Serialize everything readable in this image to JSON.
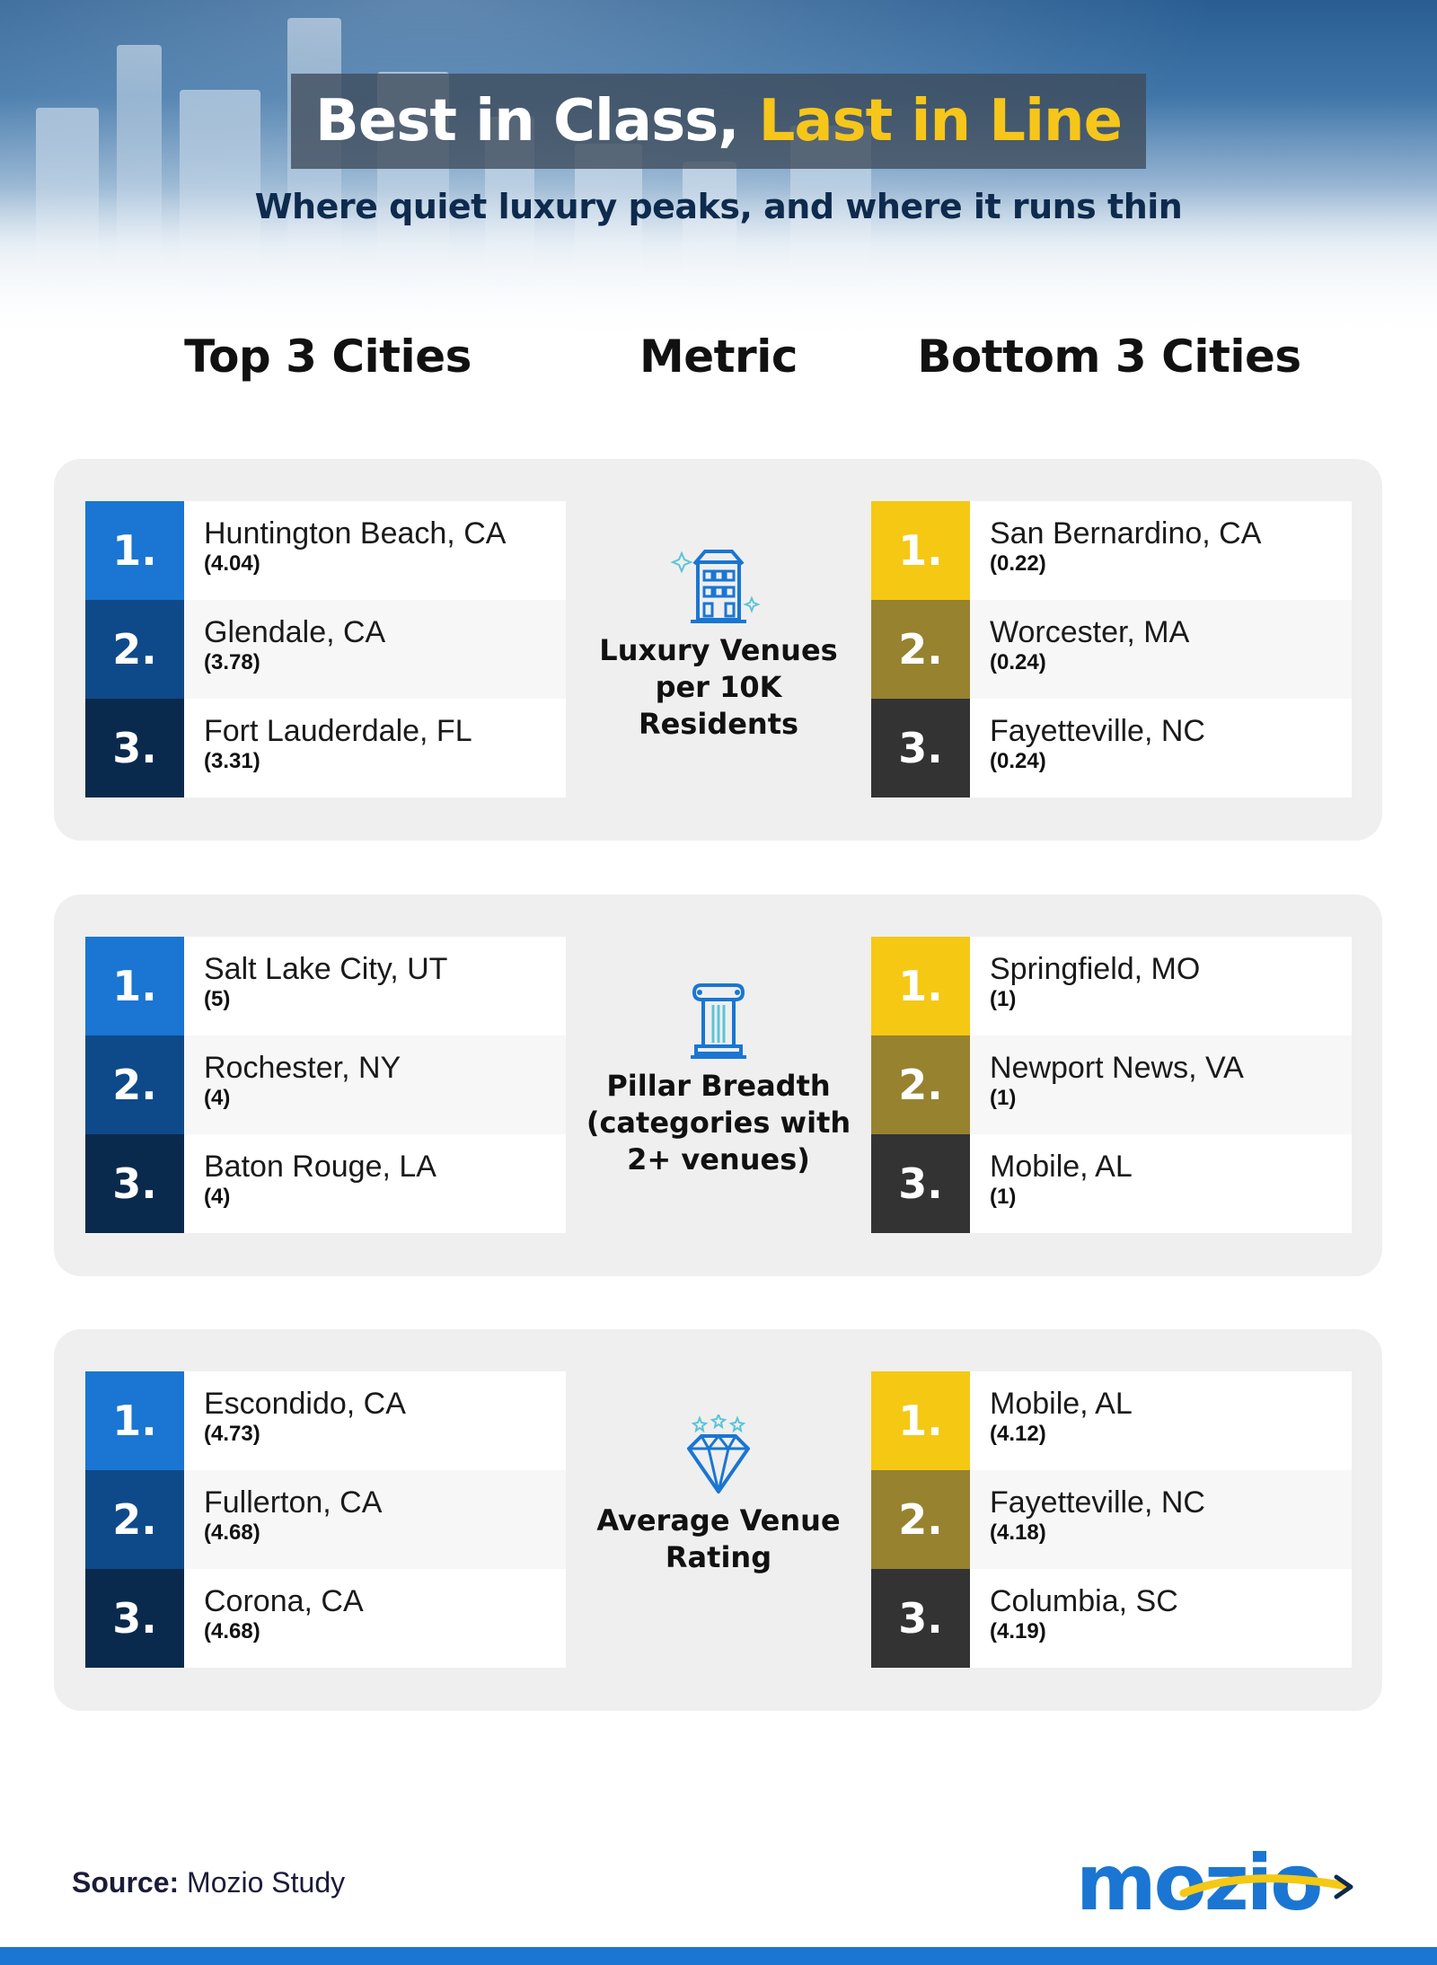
{
  "header": {
    "title_part1": "Best in Class,",
    "title_part2": "Last in Line",
    "subtitle": "Where quiet luxury peaks, and where it runs thin"
  },
  "columns": {
    "top": "Top 3 Cities",
    "metric": "Metric",
    "bottom": "Bottom 3 Cities"
  },
  "metrics": [
    {
      "label": "Luxury Venues per 10K Residents",
      "icon": "building-icon",
      "top": [
        {
          "rank": "1.",
          "city": "Huntington Beach, CA",
          "value": "(4.04)"
        },
        {
          "rank": "2.",
          "city": "Glendale, CA",
          "value": "(3.78)"
        },
        {
          "rank": "3.",
          "city": "Fort Lauderdale, FL",
          "value": "(3.31)"
        }
      ],
      "bottom": [
        {
          "rank": "1.",
          "city": "San Bernardino, CA",
          "value": "(0.22)"
        },
        {
          "rank": "2.",
          "city": "Worcester, MA",
          "value": "(0.24)"
        },
        {
          "rank": "3.",
          "city": "Fayetteville, NC",
          "value": "(0.24)"
        }
      ]
    },
    {
      "label": "Pillar Breadth (categories with 2+ venues)",
      "icon": "column-pillar-icon",
      "top": [
        {
          "rank": "1.",
          "city": "Salt Lake City, UT",
          "value": "(5)"
        },
        {
          "rank": "2.",
          "city": "Rochester, NY",
          "value": "(4)"
        },
        {
          "rank": "3.",
          "city": "Baton Rouge, LA",
          "value": "(4)"
        }
      ],
      "bottom": [
        {
          "rank": "1.",
          "city": "Springfield, MO",
          "value": "(1)"
        },
        {
          "rank": "2.",
          "city": "Newport News, VA",
          "value": "(1)"
        },
        {
          "rank": "3.",
          "city": "Mobile, AL",
          "value": "(1)"
        }
      ]
    },
    {
      "label": "Average Venue Rating",
      "icon": "diamond-stars-icon",
      "top": [
        {
          "rank": "1.",
          "city": "Escondido, CA",
          "value": "(4.73)"
        },
        {
          "rank": "2.",
          "city": "Fullerton, CA",
          "value": "(4.68)"
        },
        {
          "rank": "3.",
          "city": "Corona, CA",
          "value": "(4.68)"
        }
      ],
      "bottom": [
        {
          "rank": "1.",
          "city": "Mobile, AL",
          "value": "(4.12)"
        },
        {
          "rank": "2.",
          "city": "Fayetteville, NC",
          "value": "(4.18)"
        },
        {
          "rank": "3.",
          "city": "Columbia, SC",
          "value": "(4.19)"
        }
      ]
    }
  ],
  "footer": {
    "source_label": "Source:",
    "source_value": "Mozio Study",
    "logo_text": "mozio"
  },
  "colors": {
    "accent_blue": "#1a76d2",
    "dark_blue": "#0e4a8a",
    "navy": "#0a2a4d",
    "yellow": "#f5c814",
    "olive": "#978230",
    "charcoal": "#333333",
    "title_yellow": "#f7c61b"
  }
}
